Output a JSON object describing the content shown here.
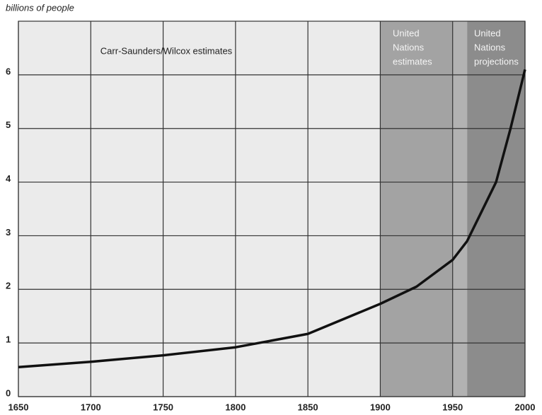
{
  "chart_data": {
    "type": "line",
    "y_axis_label": "billions of people",
    "x": [
      1650,
      1700,
      1750,
      1800,
      1850,
      1900,
      1925,
      1950,
      1960,
      1970,
      1980,
      1990,
      2000
    ],
    "series": [
      {
        "color": "#111111",
        "values": [
          0.55,
          0.65,
          0.77,
          0.92,
          1.17,
          1.73,
          2.05,
          2.55,
          2.9,
          3.45,
          4.0,
          5.0,
          6.1
        ]
      }
    ],
    "xlim": [
      1650,
      2000
    ],
    "xticks": [
      1650,
      1700,
      1750,
      1800,
      1850,
      1900,
      1950,
      2000
    ],
    "ylim": [
      0,
      7
    ],
    "yticks": [
      0,
      1,
      2,
      3,
      4,
      5,
      6
    ],
    "grid": true,
    "background": "#ebebeb",
    "regions": [
      {
        "start": 1900,
        "end": 1950,
        "color": "#a3a3a3"
      },
      {
        "start": 1950,
        "end": 1960,
        "color": "#b2b2b2"
      },
      {
        "start": 1960,
        "end": 2000,
        "color": "#8c8c8c"
      }
    ],
    "annotations": [
      {
        "lines": [
          "Carr-Saunders/Wilcox estimates"
        ],
        "color": "#222222"
      },
      {
        "lines": [
          "United",
          "Nations",
          "estimates"
        ],
        "color": "#f4f4f4"
      },
      {
        "lines": [
          "United",
          "Nations",
          "projections"
        ],
        "color": "#f4f4f4"
      }
    ]
  }
}
